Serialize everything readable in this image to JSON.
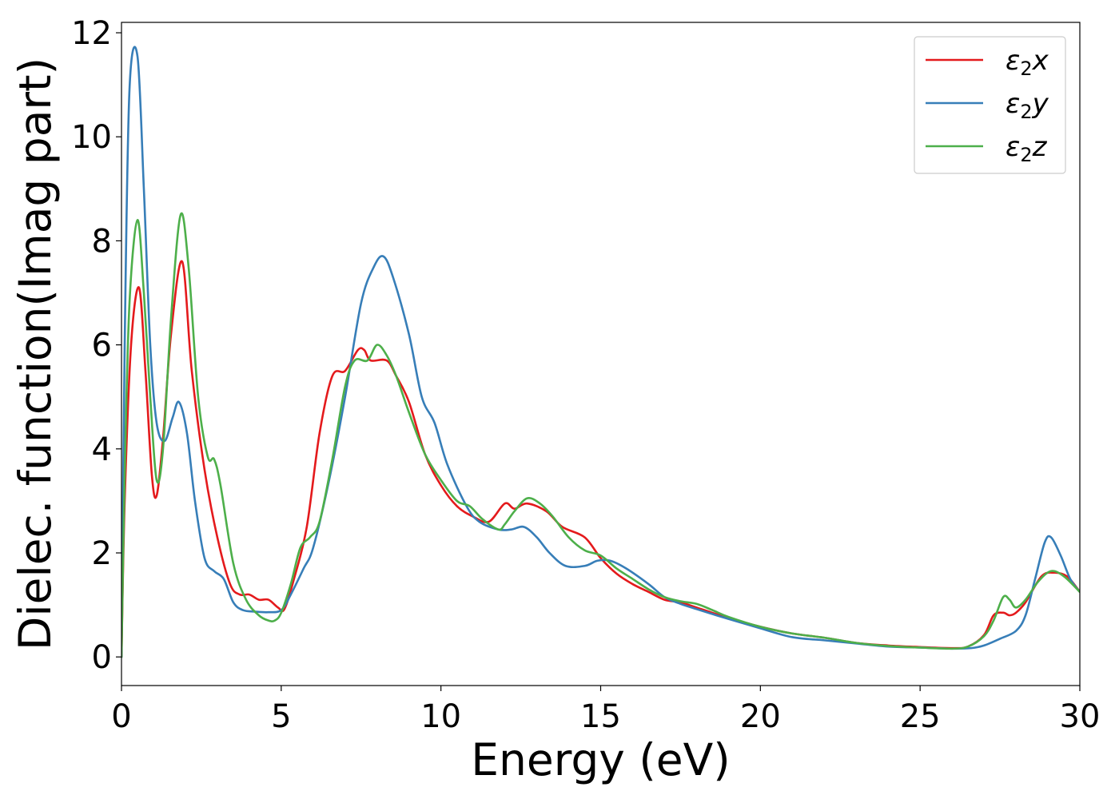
{
  "chart_data": {
    "type": "line",
    "xlabel": "Energy (eV)",
    "ylabel": "Dielec. function(Imag part)",
    "xlim": [
      0,
      30
    ],
    "ylim": [
      -0.55,
      12.2
    ],
    "xticks": [
      0,
      5,
      10,
      15,
      20,
      25,
      30
    ],
    "yticks": [
      0,
      2,
      4,
      6,
      8,
      10,
      12
    ],
    "grid": false,
    "legend_position": "top-right",
    "series": [
      {
        "name": "ε2x",
        "label_base": "ε",
        "label_sub": "2",
        "label_var": "x",
        "color": "#e41a1c",
        "points": [
          [
            0,
            0
          ],
          [
            0.1,
            3.0
          ],
          [
            0.3,
            6.0
          ],
          [
            0.55,
            7.1
          ],
          [
            0.75,
            5.5
          ],
          [
            0.95,
            3.5
          ],
          [
            1.1,
            3.1
          ],
          [
            1.3,
            4.2
          ],
          [
            1.55,
            6.2
          ],
          [
            1.9,
            7.6
          ],
          [
            2.2,
            5.5
          ],
          [
            2.6,
            3.6
          ],
          [
            3.0,
            2.3
          ],
          [
            3.4,
            1.4
          ],
          [
            3.7,
            1.2
          ],
          [
            4.0,
            1.2
          ],
          [
            4.3,
            1.1
          ],
          [
            4.6,
            1.1
          ],
          [
            4.9,
            0.95
          ],
          [
            5.1,
            0.92
          ],
          [
            5.4,
            1.5
          ],
          [
            5.8,
            2.5
          ],
          [
            6.2,
            4.3
          ],
          [
            6.6,
            5.4
          ],
          [
            7.0,
            5.5
          ],
          [
            7.4,
            5.9
          ],
          [
            7.6,
            5.9
          ],
          [
            7.8,
            5.7
          ],
          [
            8.3,
            5.7
          ],
          [
            8.6,
            5.4
          ],
          [
            9.0,
            4.9
          ],
          [
            9.5,
            3.9
          ],
          [
            10.0,
            3.3
          ],
          [
            10.5,
            2.9
          ],
          [
            11.0,
            2.7
          ],
          [
            11.5,
            2.6
          ],
          [
            12.0,
            2.95
          ],
          [
            12.3,
            2.85
          ],
          [
            12.7,
            2.95
          ],
          [
            13.3,
            2.8
          ],
          [
            13.8,
            2.5
          ],
          [
            14.5,
            2.3
          ],
          [
            15.0,
            1.9
          ],
          [
            15.5,
            1.6
          ],
          [
            16.0,
            1.4
          ],
          [
            16.5,
            1.25
          ],
          [
            17.0,
            1.1
          ],
          [
            17.5,
            1.05
          ],
          [
            18.0,
            0.95
          ],
          [
            19.0,
            0.75
          ],
          [
            20.0,
            0.58
          ],
          [
            21.0,
            0.45
          ],
          [
            22.0,
            0.37
          ],
          [
            23.0,
            0.27
          ],
          [
            24.0,
            0.22
          ],
          [
            25.0,
            0.19
          ],
          [
            26.0,
            0.17
          ],
          [
            26.5,
            0.2
          ],
          [
            27.0,
            0.42
          ],
          [
            27.3,
            0.8
          ],
          [
            27.6,
            0.85
          ],
          [
            27.8,
            0.8
          ],
          [
            28.0,
            0.85
          ],
          [
            28.3,
            1.05
          ],
          [
            28.8,
            1.55
          ],
          [
            29.2,
            1.62
          ],
          [
            29.6,
            1.55
          ],
          [
            30.0,
            1.25
          ]
        ]
      },
      {
        "name": "ε2y",
        "label_base": "ε",
        "label_sub": "2",
        "label_var": "y",
        "color": "#377eb8",
        "points": [
          [
            0,
            0
          ],
          [
            0.1,
            6.0
          ],
          [
            0.25,
            10.9
          ],
          [
            0.5,
            11.55
          ],
          [
            0.7,
            9.0
          ],
          [
            0.9,
            6.0
          ],
          [
            1.1,
            4.5
          ],
          [
            1.35,
            4.15
          ],
          [
            1.6,
            4.6
          ],
          [
            1.8,
            4.9
          ],
          [
            2.05,
            4.3
          ],
          [
            2.3,
            3.0
          ],
          [
            2.6,
            1.9
          ],
          [
            2.9,
            1.65
          ],
          [
            3.2,
            1.5
          ],
          [
            3.5,
            1.05
          ],
          [
            3.8,
            0.9
          ],
          [
            4.2,
            0.87
          ],
          [
            4.6,
            0.86
          ],
          [
            5.0,
            0.9
          ],
          [
            5.3,
            1.2
          ],
          [
            5.7,
            1.7
          ],
          [
            6.0,
            2.1
          ],
          [
            6.5,
            3.4
          ],
          [
            7.0,
            5.0
          ],
          [
            7.5,
            6.8
          ],
          [
            7.9,
            7.5
          ],
          [
            8.2,
            7.7
          ],
          [
            8.5,
            7.3
          ],
          [
            9.0,
            6.2
          ],
          [
            9.4,
            5.0
          ],
          [
            9.8,
            4.5
          ],
          [
            10.2,
            3.7
          ],
          [
            10.8,
            2.9
          ],
          [
            11.2,
            2.6
          ],
          [
            11.8,
            2.45
          ],
          [
            12.2,
            2.45
          ],
          [
            12.6,
            2.5
          ],
          [
            13.0,
            2.3
          ],
          [
            13.4,
            2.0
          ],
          [
            13.9,
            1.75
          ],
          [
            14.5,
            1.75
          ],
          [
            14.9,
            1.85
          ],
          [
            15.3,
            1.85
          ],
          [
            15.8,
            1.7
          ],
          [
            16.5,
            1.4
          ],
          [
            17.0,
            1.15
          ],
          [
            17.5,
            1.02
          ],
          [
            18.0,
            0.92
          ],
          [
            19.0,
            0.73
          ],
          [
            20.0,
            0.55
          ],
          [
            21.0,
            0.38
          ],
          [
            22.0,
            0.32
          ],
          [
            23.0,
            0.26
          ],
          [
            24.0,
            0.2
          ],
          [
            25.0,
            0.18
          ],
          [
            26.0,
            0.16
          ],
          [
            26.6,
            0.17
          ],
          [
            27.0,
            0.22
          ],
          [
            27.5,
            0.35
          ],
          [
            28.0,
            0.5
          ],
          [
            28.3,
            0.8
          ],
          [
            28.6,
            1.5
          ],
          [
            28.9,
            2.2
          ],
          [
            29.1,
            2.3
          ],
          [
            29.4,
            1.95
          ],
          [
            29.7,
            1.5
          ],
          [
            30.0,
            1.25
          ]
        ]
      },
      {
        "name": "ε2z",
        "label_base": "ε",
        "label_sub": "2",
        "label_var": "z",
        "color": "#4daf4a",
        "points": [
          [
            0,
            0
          ],
          [
            0.1,
            3.5
          ],
          [
            0.25,
            6.8
          ],
          [
            0.5,
            8.4
          ],
          [
            0.7,
            7.0
          ],
          [
            0.9,
            5.0
          ],
          [
            1.1,
            3.4
          ],
          [
            1.3,
            4.0
          ],
          [
            1.55,
            6.5
          ],
          [
            1.85,
            8.5
          ],
          [
            2.1,
            7.5
          ],
          [
            2.4,
            5.0
          ],
          [
            2.7,
            3.85
          ],
          [
            2.9,
            3.8
          ],
          [
            3.1,
            3.3
          ],
          [
            3.5,
            1.8
          ],
          [
            3.9,
            1.1
          ],
          [
            4.3,
            0.8
          ],
          [
            4.6,
            0.7
          ],
          [
            4.8,
            0.7
          ],
          [
            5.0,
            0.85
          ],
          [
            5.3,
            1.4
          ],
          [
            5.6,
            2.1
          ],
          [
            5.9,
            2.3
          ],
          [
            6.2,
            2.6
          ],
          [
            6.6,
            3.8
          ],
          [
            7.0,
            5.2
          ],
          [
            7.3,
            5.7
          ],
          [
            7.7,
            5.7
          ],
          [
            8.0,
            6.0
          ],
          [
            8.3,
            5.8
          ],
          [
            8.6,
            5.4
          ],
          [
            9.0,
            4.7
          ],
          [
            9.5,
            3.9
          ],
          [
            10.0,
            3.4
          ],
          [
            10.5,
            3.0
          ],
          [
            10.9,
            2.9
          ],
          [
            11.3,
            2.65
          ],
          [
            11.8,
            2.45
          ],
          [
            12.0,
            2.55
          ],
          [
            12.3,
            2.8
          ],
          [
            12.7,
            3.05
          ],
          [
            13.1,
            2.95
          ],
          [
            13.5,
            2.7
          ],
          [
            14.0,
            2.3
          ],
          [
            14.5,
            2.05
          ],
          [
            15.0,
            1.95
          ],
          [
            15.5,
            1.7
          ],
          [
            16.0,
            1.5
          ],
          [
            16.5,
            1.3
          ],
          [
            17.0,
            1.15
          ],
          [
            17.5,
            1.07
          ],
          [
            18.0,
            1.02
          ],
          [
            18.5,
            0.9
          ],
          [
            19.0,
            0.77
          ],
          [
            20.0,
            0.58
          ],
          [
            21.0,
            0.45
          ],
          [
            22.0,
            0.37
          ],
          [
            23.0,
            0.27
          ],
          [
            24.0,
            0.21
          ],
          [
            25.0,
            0.18
          ],
          [
            26.0,
            0.16
          ],
          [
            26.5,
            0.2
          ],
          [
            27.0,
            0.4
          ],
          [
            27.3,
            0.7
          ],
          [
            27.6,
            1.15
          ],
          [
            27.8,
            1.1
          ],
          [
            28.0,
            0.95
          ],
          [
            28.3,
            1.1
          ],
          [
            28.7,
            1.45
          ],
          [
            29.1,
            1.65
          ],
          [
            29.5,
            1.55
          ],
          [
            30.0,
            1.25
          ]
        ]
      }
    ]
  }
}
